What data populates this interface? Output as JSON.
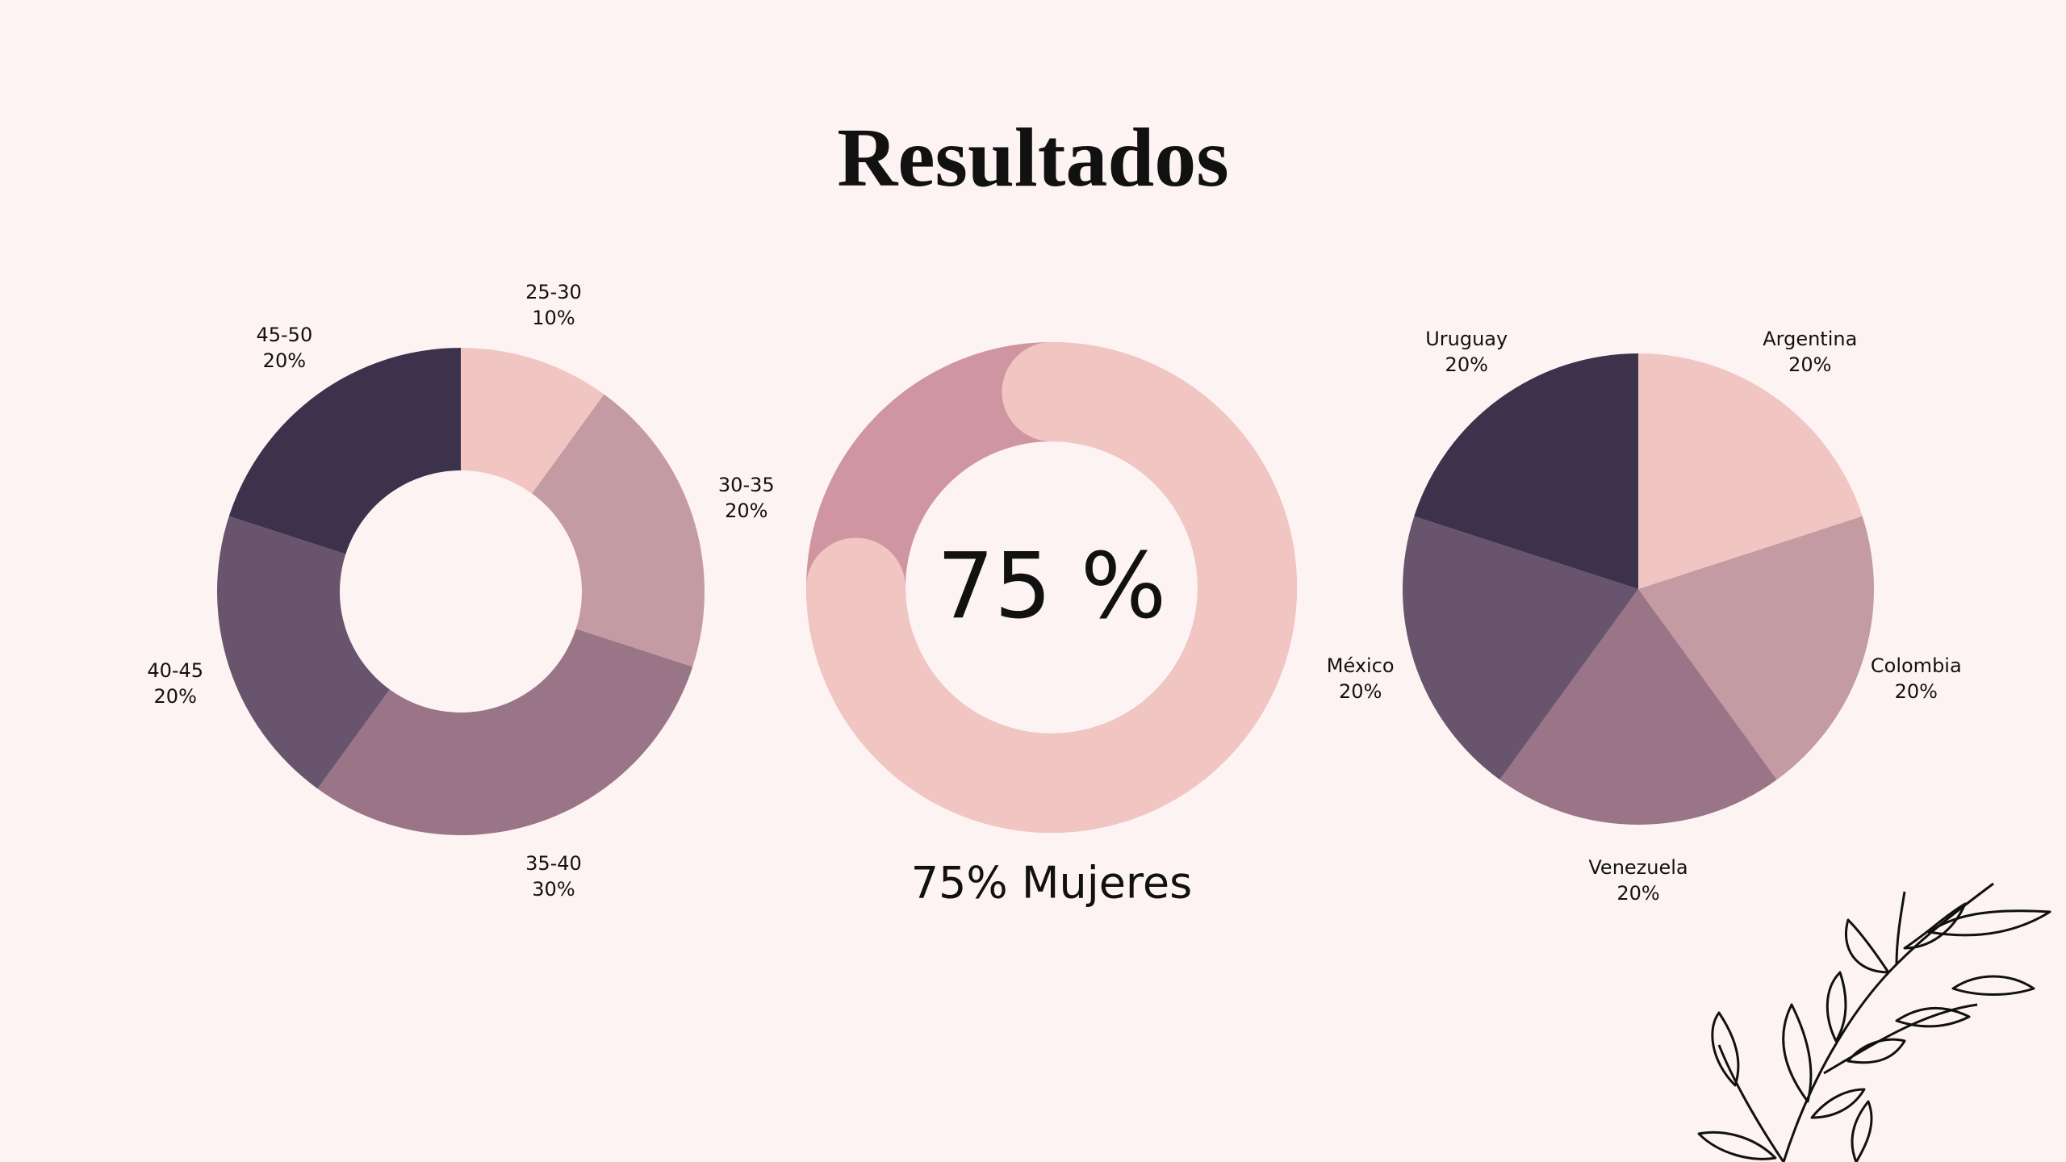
{
  "title": "Resultados",
  "chart_data": [
    {
      "type": "donut",
      "categories": [
        "25-30",
        "30-35",
        "35-40",
        "40-45",
        "45-50"
      ],
      "values": [
        10,
        20,
        30,
        20,
        20
      ],
      "value_labels": [
        "10%",
        "20%",
        "30%",
        "20%",
        "20%"
      ],
      "colors": [
        "#f0c5c2",
        "#c49aa3",
        "#997587",
        "#69546e",
        "#3c324c"
      ]
    },
    {
      "type": "progress",
      "value": 75,
      "value_label": "75 %",
      "label": "75% Mujeres",
      "color": "#f0c5c2",
      "track_color": "#cf96a2"
    },
    {
      "type": "pie",
      "categories": [
        "Argentina",
        "Colombia",
        "Venezuela",
        "México",
        "Uruguay"
      ],
      "values": [
        20,
        20,
        20,
        20,
        20
      ],
      "value_labels": [
        "20%",
        "20%",
        "20%",
        "20%",
        "20%"
      ],
      "colors": [
        "#f0c5c2",
        "#c49aa3",
        "#997587",
        "#69546e",
        "#3c324c"
      ]
    }
  ]
}
